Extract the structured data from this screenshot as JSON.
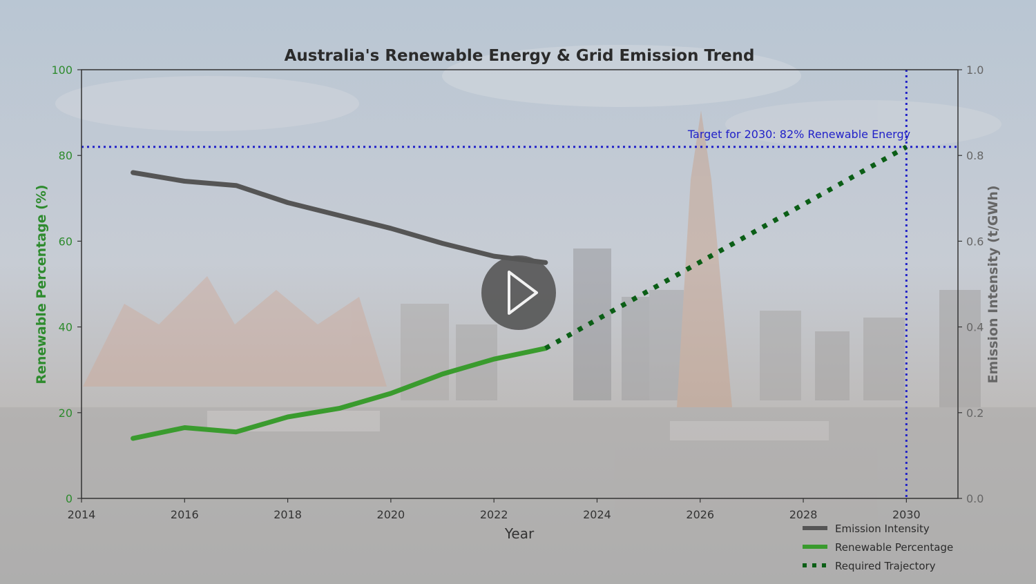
{
  "colors": {
    "emission": "#555555",
    "renewable": "#3a9b2e",
    "trajectory": "#0b5e16",
    "target": "#2121c8",
    "left_axis": "#2e8b2e",
    "right_axis": "#666666"
  },
  "player": {
    "icon": "play-icon"
  },
  "chart_data": {
    "type": "line",
    "title": "Australia's Renewable Energy & Grid Emission Trend",
    "xlabel": "Year",
    "ylabel": "Renewable Percentage (%)",
    "ylabel_right": "Emission Intensity (t/GWh)",
    "xlim": [
      2014,
      2031
    ],
    "ylim": [
      0,
      100
    ],
    "ylim_right": [
      0.0,
      1.0
    ],
    "x_ticks": [
      "2014",
      "2016",
      "2018",
      "2020",
      "2022",
      "2024",
      "2026",
      "2028",
      "2030"
    ],
    "y_ticks": [
      "0",
      "20",
      "40",
      "60",
      "80",
      "100"
    ],
    "y_ticks_right": [
      "0.0",
      "0.2",
      "0.4",
      "0.6",
      "0.8",
      "1.0"
    ],
    "series": [
      {
        "name": "Emission Intensity",
        "axis": "right",
        "x": [
          2015,
          2016,
          2017,
          2018,
          2019,
          2020,
          2021,
          2022,
          2023
        ],
        "values": [
          0.76,
          0.74,
          0.73,
          0.69,
          0.66,
          0.63,
          0.595,
          0.565,
          0.55
        ]
      },
      {
        "name": "Renewable Percentage",
        "axis": "left",
        "x": [
          2015,
          2016,
          2017,
          2018,
          2019,
          2020,
          2021,
          2022,
          2023
        ],
        "values": [
          14,
          16.5,
          15.5,
          19,
          21,
          24.5,
          29,
          32.5,
          35
        ]
      },
      {
        "name": "Required Trajectory",
        "axis": "left",
        "style": "dotted",
        "x": [
          2023,
          2030
        ],
        "values": [
          35,
          82
        ]
      }
    ],
    "target": {
      "year": 2030,
      "value": 82,
      "label": "Target for 2030: 82% Renewable Energy"
    },
    "legend": {
      "position": "bottom-right",
      "entries": [
        "Emission Intensity",
        "Renewable Percentage",
        "Required Trajectory"
      ]
    }
  }
}
